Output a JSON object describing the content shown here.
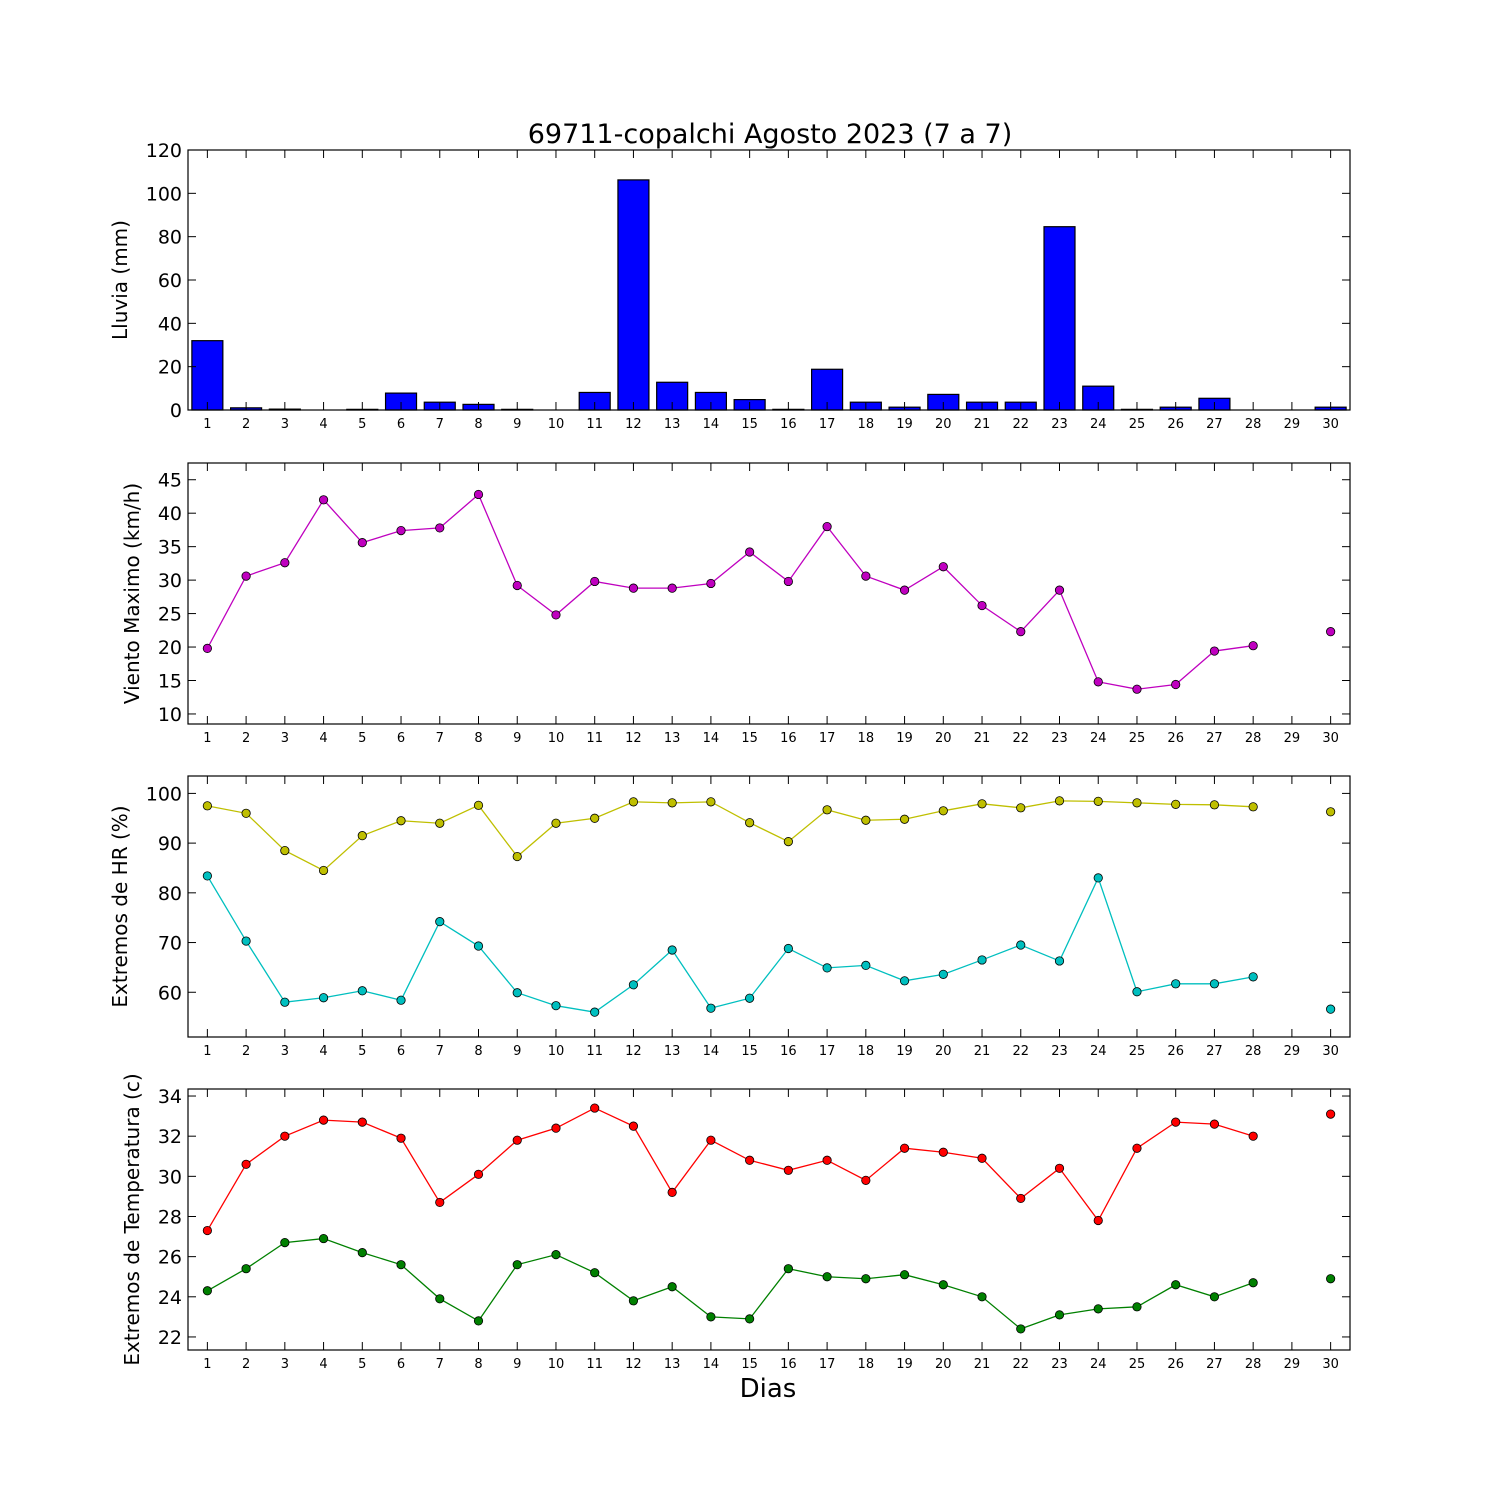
{
  "title": "69711-copalchi Agosto 2023  (7 a 7)",
  "xlabel": "Dias",
  "chart_data": [
    {
      "type": "bar",
      "title": "69711-copalchi Agosto 2023  (7 a 7)",
      "ylabel": "Lluvia (mm)",
      "xlabel": "",
      "ylim": [
        0,
        120
      ],
      "yticks": [
        0,
        20,
        40,
        60,
        80,
        100,
        120
      ],
      "xlim": [
        0.5,
        30.5
      ],
      "xticks": [
        1,
        2,
        3,
        4,
        5,
        6,
        7,
        8,
        9,
        10,
        11,
        12,
        13,
        14,
        15,
        16,
        17,
        18,
        19,
        20,
        21,
        22,
        23,
        24,
        25,
        26,
        27,
        28,
        29,
        30
      ],
      "grid": false,
      "series": [
        {
          "color": "#0000ff",
          "x": [
            1,
            2,
            3,
            4,
            5,
            6,
            7,
            8,
            9,
            10,
            11,
            12,
            13,
            14,
            15,
            16,
            17,
            18,
            19,
            20,
            21,
            22,
            23,
            24,
            25,
            26,
            27,
            28,
            29,
            30
          ],
          "values": [
            32,
            1,
            0.4,
            0,
            0.3,
            7.8,
            3.6,
            2.6,
            0.3,
            0,
            8.1,
            106.2,
            12.8,
            8.1,
            4.8,
            0.3,
            18.8,
            3.6,
            1.3,
            7.2,
            3.6,
            3.6,
            84.6,
            11,
            0.3,
            1.3,
            5.4,
            0,
            0,
            1.3
          ]
        }
      ]
    },
    {
      "type": "line",
      "ylabel": "Viento Maximo (km/h)",
      "xlabel": "",
      "ylim": [
        8.5,
        47.5
      ],
      "yticks": [
        10,
        15,
        20,
        25,
        30,
        35,
        40,
        45
      ],
      "xlim": [
        0.5,
        30.5
      ],
      "xticks": [
        1,
        2,
        3,
        4,
        5,
        6,
        7,
        8,
        9,
        10,
        11,
        12,
        13,
        14,
        15,
        16,
        17,
        18,
        19,
        20,
        21,
        22,
        23,
        24,
        25,
        26,
        27,
        28,
        29,
        30
      ],
      "grid": false,
      "series": [
        {
          "color": "#bf00bf",
          "x": [
            1,
            2,
            3,
            4,
            5,
            6,
            7,
            8,
            9,
            10,
            11,
            12,
            13,
            14,
            15,
            16,
            17,
            18,
            19,
            20,
            21,
            22,
            23,
            24,
            25,
            26,
            27,
            28,
            29,
            30
          ],
          "values": [
            19.8,
            30.6,
            32.6,
            42,
            35.6,
            37.4,
            37.8,
            42.8,
            29.2,
            24.8,
            29.8,
            28.8,
            28.8,
            29.5,
            34.2,
            29.8,
            38,
            30.6,
            28.5,
            32,
            26.2,
            22.3,
            28.5,
            14.8,
            13.7,
            14.4,
            19.4,
            20.2,
            null,
            22.3
          ]
        }
      ]
    },
    {
      "type": "line",
      "ylabel": "Extremos de HR (%)",
      "xlabel": "",
      "ylim": [
        51,
        103.5
      ],
      "yticks": [
        60,
        70,
        80,
        90,
        100
      ],
      "xlim": [
        0.5,
        30.5
      ],
      "xticks": [
        1,
        2,
        3,
        4,
        5,
        6,
        7,
        8,
        9,
        10,
        11,
        12,
        13,
        14,
        15,
        16,
        17,
        18,
        19,
        20,
        21,
        22,
        23,
        24,
        25,
        26,
        27,
        28,
        29,
        30
      ],
      "grid": false,
      "series": [
        {
          "color": "#bfbf00",
          "x": [
            1,
            2,
            3,
            4,
            5,
            6,
            7,
            8,
            9,
            10,
            11,
            12,
            13,
            14,
            15,
            16,
            17,
            18,
            19,
            20,
            21,
            22,
            23,
            24,
            25,
            26,
            27,
            28,
            29,
            30
          ],
          "values": [
            97.5,
            96,
            88.5,
            84.5,
            91.5,
            94.5,
            94,
            97.6,
            87.3,
            94,
            95,
            98.3,
            98.1,
            98.3,
            94.1,
            90.3,
            96.7,
            94.6,
            94.8,
            96.5,
            97.9,
            97.1,
            98.5,
            98.4,
            98.1,
            97.8,
            97.7,
            97.3,
            null,
            96.3
          ]
        },
        {
          "color": "#00bfbf",
          "x": [
            1,
            2,
            3,
            4,
            5,
            6,
            7,
            8,
            9,
            10,
            11,
            12,
            13,
            14,
            15,
            16,
            17,
            18,
            19,
            20,
            21,
            22,
            23,
            24,
            25,
            26,
            27,
            28,
            29,
            30
          ],
          "values": [
            83.4,
            70.3,
            58,
            58.9,
            60.3,
            58.4,
            74.2,
            69.3,
            59.9,
            57.3,
            56,
            61.5,
            68.5,
            56.8,
            58.8,
            68.8,
            64.9,
            65.4,
            62.3,
            63.6,
            66.5,
            69.5,
            66.3,
            83,
            60.1,
            61.7,
            61.7,
            63.1,
            null,
            56.6
          ]
        }
      ]
    },
    {
      "type": "line",
      "ylabel": "Extremos de Temperatura (c)",
      "xlabel": "Dias",
      "ylim": [
        21.35,
        34.35
      ],
      "yticks": [
        22,
        24,
        26,
        28,
        30,
        32,
        34
      ],
      "xlim": [
        0.5,
        30.5
      ],
      "xticks": [
        1,
        2,
        3,
        4,
        5,
        6,
        7,
        8,
        9,
        10,
        11,
        12,
        13,
        14,
        15,
        16,
        17,
        18,
        19,
        20,
        21,
        22,
        23,
        24,
        25,
        26,
        27,
        28,
        29,
        30
      ],
      "grid": false,
      "series": [
        {
          "color": "#ff0000",
          "x": [
            1,
            2,
            3,
            4,
            5,
            6,
            7,
            8,
            9,
            10,
            11,
            12,
            13,
            14,
            15,
            16,
            17,
            18,
            19,
            20,
            21,
            22,
            23,
            24,
            25,
            26,
            27,
            28,
            29,
            30
          ],
          "values": [
            27.3,
            30.6,
            32,
            32.8,
            32.7,
            31.9,
            28.7,
            30.1,
            31.8,
            32.4,
            33.4,
            32.5,
            29.2,
            31.8,
            30.8,
            30.3,
            30.8,
            29.8,
            31.4,
            31.2,
            30.9,
            28.9,
            30.4,
            27.8,
            31.4,
            32.7,
            32.6,
            32,
            null,
            33.1
          ]
        },
        {
          "color": "#008000",
          "x": [
            1,
            2,
            3,
            4,
            5,
            6,
            7,
            8,
            9,
            10,
            11,
            12,
            13,
            14,
            15,
            16,
            17,
            18,
            19,
            20,
            21,
            22,
            23,
            24,
            25,
            26,
            27,
            28,
            29,
            30
          ],
          "values": [
            24.3,
            25.4,
            26.7,
            26.9,
            26.2,
            25.6,
            23.9,
            22.8,
            25.6,
            26.1,
            25.2,
            23.8,
            24.5,
            23,
            22.9,
            25.4,
            25,
            24.9,
            25.1,
            24.6,
            24,
            22.4,
            23.1,
            23.4,
            23.5,
            24.6,
            24,
            24.7,
            null,
            24.9
          ]
        }
      ]
    }
  ]
}
